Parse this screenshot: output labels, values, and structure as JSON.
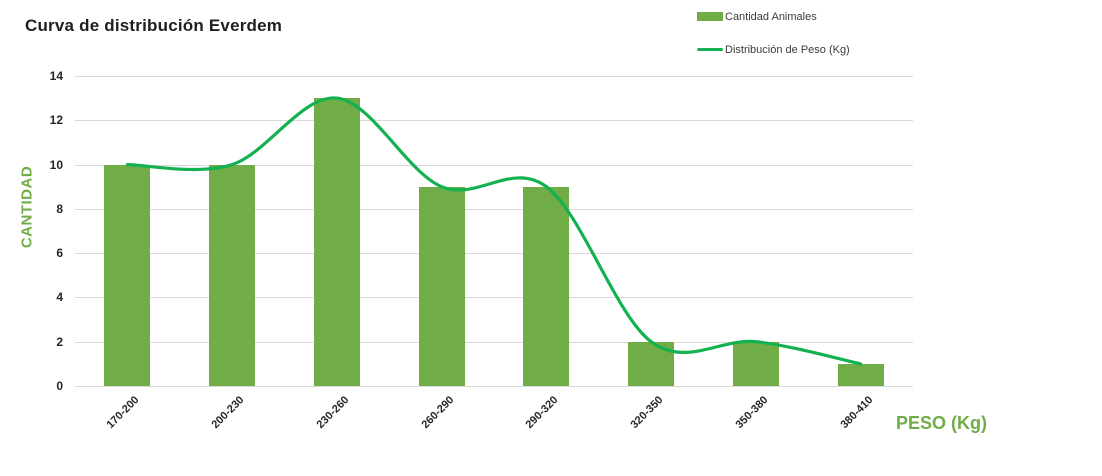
{
  "colors": {
    "bar": "#70AD47",
    "line": "#14B150",
    "grid": "#D9D9D9",
    "axis_text": "#262626",
    "title_text": "#1F1F1F",
    "green_text": "#70AD47",
    "legend_text": "#3B3B3B"
  },
  "legend": {
    "items": [
      {
        "label": "Cantidad Animales",
        "swatch": "bar-swatch"
      },
      {
        "label": "Distribución de Peso (Kg)",
        "swatch": "line-swatch"
      }
    ]
  },
  "chart_data": {
    "type": "bar",
    "title": "Curva de distribución Everdem",
    "categories": [
      "170-200",
      "200-230",
      "230-260",
      "260-290",
      "290-320",
      "320-350",
      "350-380",
      "380-410"
    ],
    "series": [
      {
        "name": "Cantidad Animales",
        "type": "bar",
        "color": "#70AD47",
        "values": [
          10,
          10,
          13,
          9,
          9,
          2,
          2,
          1
        ]
      },
      {
        "name": "Distribución de Peso (Kg)",
        "type": "line",
        "smooth": true,
        "color": "#14B150",
        "values": [
          10,
          10,
          13,
          9,
          9,
          2,
          2,
          1
        ]
      }
    ],
    "xlabel": "PESO (Kg)",
    "ylabel": "CANTIDAD",
    "ylim": [
      0,
      14
    ],
    "ytick_step": 2,
    "grid": true,
    "legend_position": "top-right"
  }
}
